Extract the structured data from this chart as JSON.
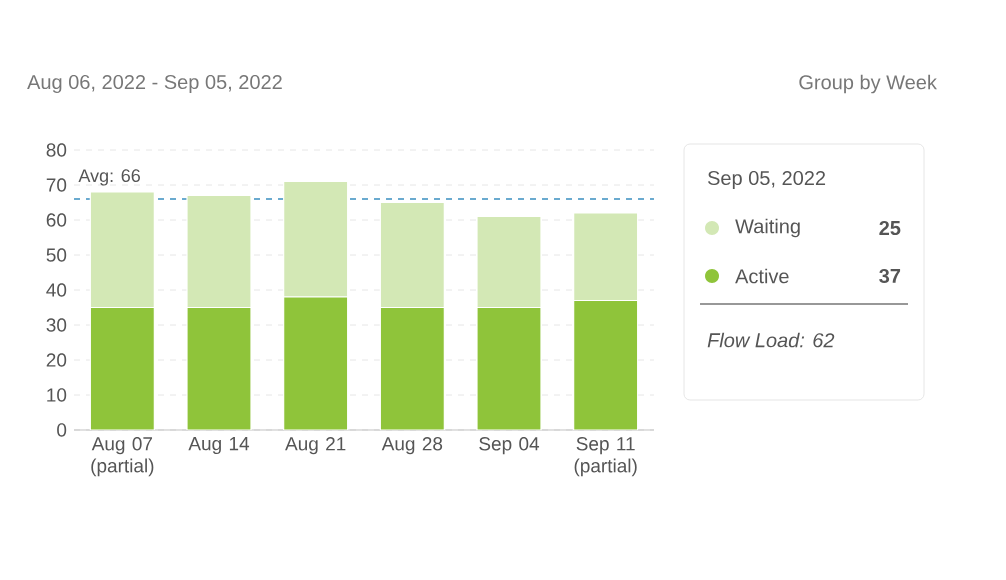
{
  "chart_data": {
    "type": "bar",
    "title": "Aug 06, 2022 - Sep 05, 2022",
    "subtitle": "Group by Week",
    "categories": [
      "Aug 07 (partial)",
      "Aug 14",
      "Aug 21",
      "Aug 28",
      "Sep 04",
      "Sep 11 (partial)"
    ],
    "series": [
      {
        "name": "Active",
        "color": "#8fc43a",
        "values": [
          35,
          35,
          38,
          35,
          35,
          37
        ]
      },
      {
        "name": "Waiting",
        "color": "#d3e8b5",
        "values": [
          33,
          32,
          33,
          30,
          26,
          25
        ]
      }
    ],
    "stacked": true,
    "ylim": [
      0,
      80
    ],
    "yticks": [
      0,
      10,
      20,
      30,
      40,
      50,
      60,
      70,
      80
    ],
    "grid": "y",
    "legend": "right",
    "ref_lines": [
      {
        "axis": "y",
        "value": 66,
        "label": "Avg: 66",
        "color": "#3a8fc0",
        "line_style": "dashed"
      }
    ],
    "annotations": [
      "Sep 05, 2022",
      "25",
      "37",
      "Flow Load: 62"
    ]
  }
}
